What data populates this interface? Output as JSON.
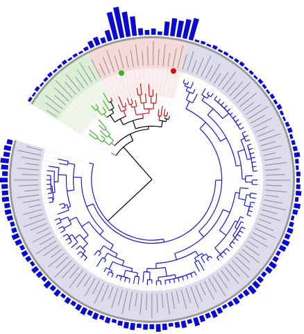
{
  "chart_data": {
    "type": "circular-bar",
    "color": "#0b0bd0",
    "values": [
      4,
      3,
      5,
      3,
      4,
      5,
      3,
      4,
      5,
      3,
      4,
      3,
      5,
      10,
      12,
      8,
      16,
      40,
      45,
      36,
      28,
      10,
      7,
      9,
      5,
      20,
      26,
      24,
      28,
      32,
      3,
      4,
      3,
      5,
      3,
      4,
      3,
      4,
      5,
      3,
      4,
      3,
      5,
      4,
      3,
      5,
      4,
      6,
      4,
      3,
      5,
      6,
      4,
      5,
      6,
      8,
      5,
      4,
      6,
      5,
      6,
      8,
      5,
      9,
      7,
      4,
      6,
      8,
      7,
      10,
      9,
      5,
      7,
      10,
      9,
      6,
      8,
      10,
      12,
      8,
      6,
      9,
      7,
      5,
      8,
      10,
      7,
      9,
      12,
      6,
      10,
      8,
      5,
      9,
      11,
      7,
      8,
      6,
      10,
      9,
      7,
      5,
      8,
      6,
      9,
      7,
      10,
      8,
      6,
      8,
      5,
      9,
      7,
      10,
      6,
      8,
      9,
      5,
      7,
      8,
      6,
      9,
      10,
      7,
      6,
      8,
      9,
      8,
      10,
      9,
      9,
      11,
      8,
      10,
      12,
      9,
      10,
      8
    ]
  }
}
